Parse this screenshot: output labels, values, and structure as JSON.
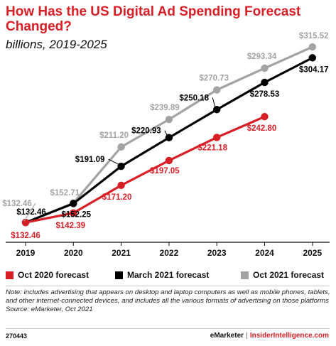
{
  "title": "How Has the US Digital Ad Spending Forecast Changed?",
  "subtitle": "billions, 2019-2025",
  "colors": {
    "red": "#d81f26",
    "black": "#000000",
    "gray": "#a3a3a3"
  },
  "chart_data": {
    "type": "line",
    "x": [
      "2019",
      "2020",
      "2021",
      "2022",
      "2023",
      "2024",
      "2025"
    ],
    "ylim": [
      120,
      320
    ],
    "grid": false,
    "legend_position": "bottom",
    "series": [
      {
        "name": "Oct 2020 forecast",
        "color": "#d81f26",
        "values": [
          132.46,
          142.39,
          171.2,
          197.05,
          221.18,
          242.8,
          null
        ],
        "labels": [
          "$132.46",
          "$142.39",
          "$171.20",
          "$197.05",
          "$221.18",
          "$242.80",
          null
        ]
      },
      {
        "name": "March 2021 forecast",
        "color": "#000000",
        "values": [
          132.46,
          152.25,
          191.09,
          220.93,
          250.18,
          278.53,
          304.17
        ],
        "labels": [
          "$132.46",
          "$152.25",
          "$191.09",
          "$220.93",
          "$250.18",
          "$278.53",
          "$304.17"
        ]
      },
      {
        "name": "Oct 2021 forecast",
        "color": "#a3a3a3",
        "values": [
          132.46,
          152.71,
          211.2,
          239.89,
          270.73,
          293.34,
          315.52
        ],
        "labels": [
          "$132.46",
          "$152.71",
          "$211.20",
          "$239.89",
          "$270.73",
          "$293.34",
          "$315.52"
        ]
      }
    ]
  },
  "legend": [
    {
      "label": "Oct 2020 forecast",
      "color": "#d81f26"
    },
    {
      "label": "March 2021 forecast",
      "color": "#000000"
    },
    {
      "label": "Oct 2021 forecast",
      "color": "#a3a3a3"
    }
  ],
  "note": "Note: includes advertising that appears on desktop and laptop computers as well as mobile phones, tablets, and other internet-connected devices, and includes all the various formats of advertising on those platforms",
  "source": "Source: eMarketer, Oct 2021",
  "footer": {
    "id": "270443",
    "brand1": "eMarketer",
    "sep": "|",
    "brand2": "InsiderIntelligence.com"
  }
}
